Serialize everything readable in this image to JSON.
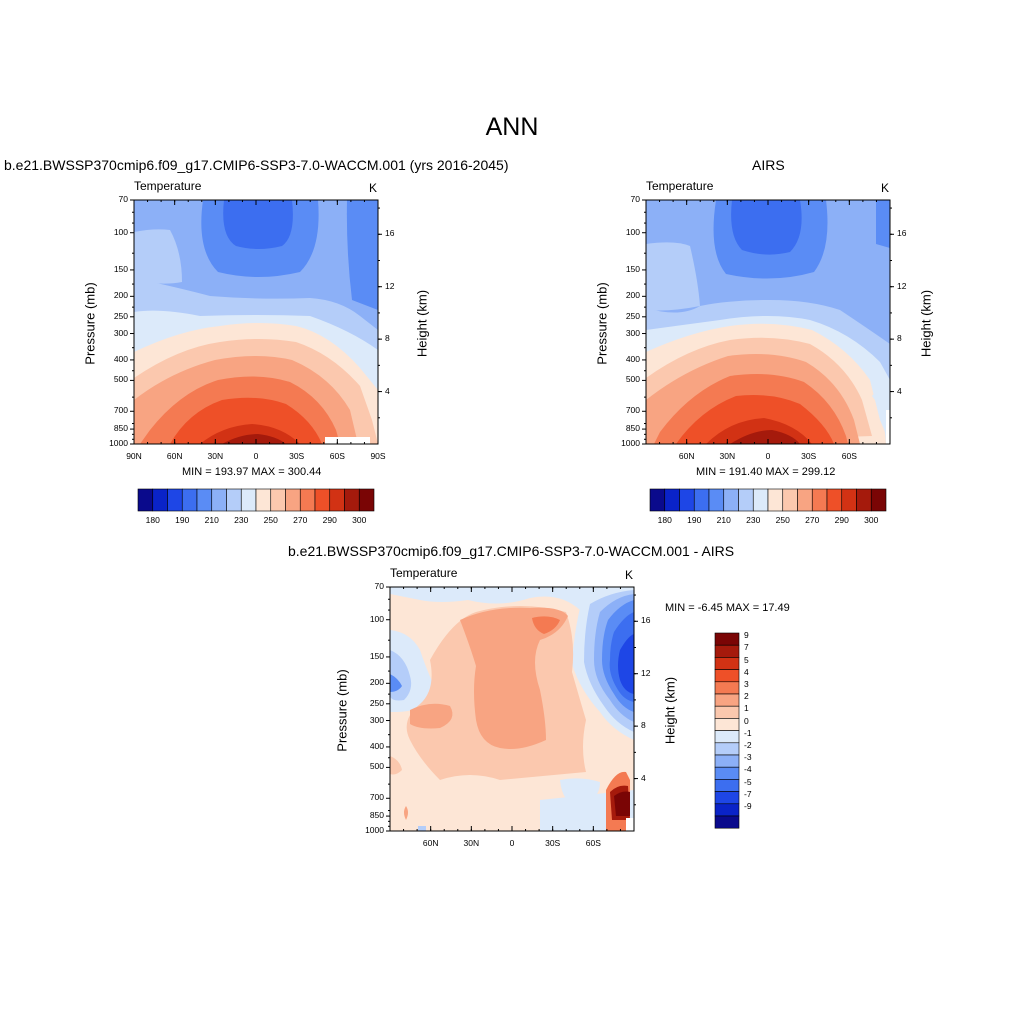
{
  "title": "ANN",
  "panels": [
    {
      "title": "b.e21.BWSSP370cmip6.f09_g17.CMIP6-SSP3-7.0-WACCM.001 (yrs 2016-2045)",
      "variable": "Temperature",
      "units": "K",
      "ylabel": "Pressure (mb)",
      "y2label": "Height (km)",
      "stats": "MIN = 193.97  MAX = 300.44",
      "xticks": [
        "90N",
        "60N",
        "30N",
        "0",
        "30S",
        "60S",
        "90S"
      ],
      "yticks": [
        "70",
        "100",
        "150",
        "200",
        "250",
        "300",
        "400",
        "500",
        "700",
        "850",
        "1000"
      ],
      "y2ticks": [
        "16",
        "12",
        "8",
        "4"
      ],
      "colorbar_labels": [
        "180",
        "190",
        "210",
        "230",
        "250",
        "270",
        "290",
        "300"
      ]
    },
    {
      "title": "AIRS",
      "variable": "Temperature",
      "units": "K",
      "ylabel": "Pressure (mb)",
      "y2label": "Height (km)",
      "stats": "MIN = 191.40  MAX = 299.12",
      "xticks": [
        "60N",
        "30N",
        "0",
        "30S",
        "60S"
      ],
      "yticks": [
        "70",
        "100",
        "150",
        "200",
        "250",
        "300",
        "400",
        "500",
        "700",
        "850",
        "1000"
      ],
      "y2ticks": [
        "16",
        "12",
        "8",
        "4"
      ],
      "colorbar_labels": [
        "180",
        "190",
        "210",
        "230",
        "250",
        "270",
        "290",
        "300"
      ]
    },
    {
      "title": "b.e21.BWSSP370cmip6.f09_g17.CMIP6-SSP3-7.0-WACCM.001 - AIRS",
      "variable": "Temperature",
      "units": "K",
      "ylabel": "Pressure (mb)",
      "y2label": "Height (km)",
      "stats": "MIN =  -6.45  MAX =  17.49",
      "xticks": [
        "60N",
        "30N",
        "0",
        "30S",
        "60S"
      ],
      "yticks": [
        "70",
        "100",
        "150",
        "200",
        "250",
        "300",
        "400",
        "500",
        "700",
        "850",
        "1000"
      ],
      "y2ticks": [
        "16",
        "12",
        "8",
        "4"
      ],
      "colorbar_labels": [
        "9",
        "7",
        "5",
        "4",
        "3",
        "2",
        "1",
        "0",
        "-1",
        "-2",
        "-3",
        "-4",
        "-5",
        "-7",
        "-9"
      ]
    }
  ],
  "colors": {
    "temperature_scale": [
      "#0a0a8c",
      "#0a23c8",
      "#1e46e6",
      "#3c6ef0",
      "#5a8cf5",
      "#8cb0f7",
      "#b4cdf9",
      "#dceafa",
      "#fde6d6",
      "#fbc8ae",
      "#f8a482",
      "#f47a52",
      "#ee5028",
      "#d23214",
      "#a51a0c",
      "#7a0505"
    ],
    "difference_scale": [
      "#7a0505",
      "#a51a0c",
      "#d23214",
      "#ee5028",
      "#f47a52",
      "#f8a482",
      "#fbc8ae",
      "#fde6d6",
      "#dceafa",
      "#b4cdf9",
      "#8cb0f7",
      "#5a8cf5",
      "#3c6ef0",
      "#1e46e6",
      "#0a23c8",
      "#0a0a8c"
    ]
  },
  "chart_data": [
    {
      "type": "heatmap",
      "title": "b.e21.BWSSP370cmip6.f09_g17.CMIP6-SSP3-7.0-WACCM.001 (yrs 2016-2045)",
      "subtitle": "Temperature",
      "units": "K",
      "x": [
        "90N",
        "60N",
        "30N",
        "0",
        "30S",
        "60S",
        "90S"
      ],
      "y_pressure_mb": [
        70,
        100,
        150,
        200,
        250,
        300,
        400,
        500,
        700,
        850,
        1000
      ],
      "y2_height_km": [
        16,
        12,
        8,
        4
      ],
      "min": 193.97,
      "max": 300.44,
      "colorbar": [
        180,
        190,
        210,
        230,
        250,
        270,
        290,
        300
      ]
    },
    {
      "type": "heatmap",
      "title": "AIRS",
      "subtitle": "Temperature",
      "units": "K",
      "x": [
        "60N",
        "30N",
        "0",
        "30S",
        "60S"
      ],
      "y_pressure_mb": [
        70,
        100,
        150,
        200,
        250,
        300,
        400,
        500,
        700,
        850,
        1000
      ],
      "y2_height_km": [
        16,
        12,
        8,
        4
      ],
      "min": 191.4,
      "max": 299.12,
      "colorbar": [
        180,
        190,
        210,
        230,
        250,
        270,
        290,
        300
      ]
    },
    {
      "type": "heatmap",
      "title": "b.e21.BWSSP370cmip6.f09_g17.CMIP6-SSP3-7.0-WACCM.001 - AIRS",
      "subtitle": "Temperature",
      "units": "K",
      "x": [
        "60N",
        "30N",
        "0",
        "30S",
        "60S"
      ],
      "y_pressure_mb": [
        70,
        100,
        150,
        200,
        250,
        300,
        400,
        500,
        700,
        850,
        1000
      ],
      "y2_height_km": [
        16,
        12,
        8,
        4
      ],
      "min": -6.45,
      "max": 17.49,
      "colorbar": [
        9,
        7,
        5,
        4,
        3,
        2,
        1,
        0,
        -1,
        -2,
        -3,
        -4,
        -5,
        -7,
        -9
      ]
    }
  ]
}
